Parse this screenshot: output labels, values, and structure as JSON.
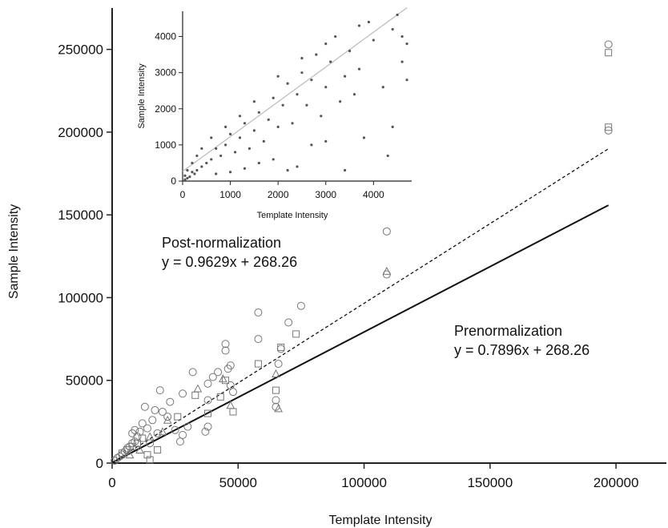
{
  "chart_data": [
    {
      "type": "scatter",
      "role": "main",
      "xlabel": "Template Intensity",
      "ylabel": "Sample Intensity",
      "xlim": [
        0,
        220000
      ],
      "ylim": [
        0,
        275000
      ],
      "x_ticks": [
        0,
        50000,
        100000,
        150000,
        200000
      ],
      "y_ticks": [
        0,
        50000,
        100000,
        150000,
        200000,
        250000
      ],
      "x_tick_labels": [
        "0",
        "50000",
        "100000",
        "150000",
        "200000"
      ],
      "y_tick_labels": [
        "0",
        "50000",
        "100000",
        "150000",
        "200000",
        "250000"
      ],
      "grid": false,
      "annotations": [
        {
          "line1": "Post-normalization",
          "line2": "y = 0.9629x + 268.26"
        },
        {
          "line1": "Prenormalization",
          "line2": "y = 0.7896x + 268.26"
        }
      ],
      "fit_lines": [
        {
          "slope": 0.9629,
          "intercept": 268.26,
          "style": "dashed"
        },
        {
          "slope": 0.7896,
          "intercept": 268.26,
          "style": "solid"
        }
      ],
      "series": [
        {
          "marker": "circle",
          "points": [
            [
              197000,
              253000
            ],
            [
              197000,
              201000
            ],
            [
              109000,
              140000
            ],
            [
              109000,
              114000
            ],
            [
              75000,
              95000
            ],
            [
              70000,
              85000
            ],
            [
              58000,
              91000
            ],
            [
              58000,
              75000
            ],
            [
              67000,
              69000
            ],
            [
              66000,
              60000
            ],
            [
              65000,
              38000
            ],
            [
              65000,
              34000
            ],
            [
              45000,
              72000
            ],
            [
              45000,
              68000
            ],
            [
              47000,
              59000
            ],
            [
              46000,
              57000
            ],
            [
              47000,
              47000
            ],
            [
              48000,
              43000
            ],
            [
              40000,
              52000
            ],
            [
              42000,
              55000
            ],
            [
              38000,
              48000
            ],
            [
              38000,
              38000
            ],
            [
              32000,
              55000
            ],
            [
              28000,
              42000
            ],
            [
              19000,
              44000
            ],
            [
              23000,
              37000
            ],
            [
              20000,
              31000
            ],
            [
              22000,
              28000
            ],
            [
              16000,
              26000
            ],
            [
              14000,
              21000
            ],
            [
              12000,
              24000
            ],
            [
              11000,
              19000
            ],
            [
              10000,
              16000
            ],
            [
              9000,
              13000
            ],
            [
              8000,
              12000
            ],
            [
              7000,
              10000
            ],
            [
              6000,
              9000
            ],
            [
              5000,
              7000
            ],
            [
              4000,
              5000
            ],
            [
              3000,
              4000
            ],
            [
              2000,
              3000
            ],
            [
              1000,
              1500
            ],
            [
              28000,
              17000
            ],
            [
              27000,
              13000
            ],
            [
              38000,
              22000
            ],
            [
              37000,
              19000
            ],
            [
              30000,
              22000
            ],
            [
              13000,
              34000
            ],
            [
              17000,
              32000
            ],
            [
              15000,
              12000
            ],
            [
              18000,
              18000
            ],
            [
              25000,
              20000
            ],
            [
              9000,
              20000
            ],
            [
              8000,
              18000
            ]
          ]
        },
        {
          "marker": "square",
          "points": [
            [
              197000,
              248000
            ],
            [
              197000,
              203000
            ],
            [
              73000,
              78000
            ],
            [
              67000,
              70000
            ],
            [
              58000,
              60000
            ],
            [
              45000,
              50000
            ],
            [
              43000,
              40000
            ],
            [
              48000,
              31000
            ],
            [
              65000,
              44000
            ],
            [
              38000,
              30000
            ],
            [
              33000,
              41000
            ],
            [
              26000,
              28000
            ],
            [
              12000,
              15000
            ],
            [
              10000,
              12000
            ],
            [
              8000,
              10000
            ],
            [
              6000,
              8000
            ],
            [
              4000,
              6000
            ],
            [
              15000,
              2000
            ],
            [
              14000,
              5000
            ],
            [
              18000,
              8000
            ]
          ]
        },
        {
          "marker": "triangle",
          "points": [
            [
              109000,
              116000
            ],
            [
              65000,
              54000
            ],
            [
              66000,
              33000
            ],
            [
              47000,
              35000
            ],
            [
              44000,
              51000
            ],
            [
              34000,
              45000
            ],
            [
              22000,
              26000
            ],
            [
              15000,
              16000
            ],
            [
              11000,
              8000
            ],
            [
              7000,
              5000
            ],
            [
              20000,
              19000
            ]
          ]
        }
      ]
    },
    {
      "type": "scatter",
      "role": "inset",
      "xlabel": "Template Intensity",
      "ylabel": "Sample Intensity",
      "xlim": [
        0,
        4800
      ],
      "ylim": [
        0,
        4700
      ],
      "x_ticks": [
        0,
        1000,
        2000,
        3000,
        4000
      ],
      "y_ticks": [
        0,
        1000,
        2000,
        3000,
        4000
      ],
      "x_tick_labels": [
        "0",
        "1000",
        "2000",
        "3000",
        "4000"
      ],
      "y_tick_labels": [
        "0",
        "1000",
        "2000",
        "3000",
        "4000"
      ],
      "grid": false,
      "fit_line": {
        "slope": 0.9629,
        "intercept": 268.26,
        "style": "solid"
      },
      "points": [
        [
          4500,
          4600
        ],
        [
          4400,
          4200
        ],
        [
          4700,
          3800
        ],
        [
          4600,
          3300
        ],
        [
          4200,
          2600
        ],
        [
          4000,
          3900
        ],
        [
          3900,
          4400
        ],
        [
          3700,
          3100
        ],
        [
          3600,
          2400
        ],
        [
          3500,
          3600
        ],
        [
          3400,
          2900
        ],
        [
          3300,
          2200
        ],
        [
          3200,
          4000
        ],
        [
          3100,
          3300
        ],
        [
          3000,
          2600
        ],
        [
          2900,
          1800
        ],
        [
          2800,
          3500
        ],
        [
          2700,
          2800
        ],
        [
          2600,
          2100
        ],
        [
          2500,
          3000
        ],
        [
          2400,
          2400
        ],
        [
          2300,
          1600
        ],
        [
          2200,
          2700
        ],
        [
          2100,
          2100
        ],
        [
          2000,
          1500
        ],
        [
          1900,
          2300
        ],
        [
          1800,
          1700
        ],
        [
          1700,
          1100
        ],
        [
          1600,
          1900
        ],
        [
          1500,
          1400
        ],
        [
          1400,
          900
        ],
        [
          1300,
          1600
        ],
        [
          1200,
          1200
        ],
        [
          1100,
          800
        ],
        [
          1000,
          1300
        ],
        [
          900,
          1000
        ],
        [
          800,
          700
        ],
        [
          700,
          900
        ],
        [
          600,
          600
        ],
        [
          500,
          500
        ],
        [
          400,
          400
        ],
        [
          300,
          300
        ],
        [
          250,
          200
        ],
        [
          200,
          250
        ],
        [
          150,
          120
        ],
        [
          100,
          80
        ],
        [
          50,
          40
        ],
        [
          2400,
          400
        ],
        [
          2200,
          300
        ],
        [
          3400,
          300
        ],
        [
          3000,
          1100
        ],
        [
          3800,
          1200
        ],
        [
          4300,
          700
        ],
        [
          4400,
          1500
        ],
        [
          2700,
          1000
        ],
        [
          1900,
          600
        ],
        [
          1600,
          500
        ],
        [
          1300,
          350
        ],
        [
          1000,
          250
        ],
        [
          700,
          200
        ],
        [
          4600,
          4000
        ],
        [
          4700,
          2800
        ],
        [
          3700,
          4300
        ],
        [
          3000,
          3800
        ],
        [
          2500,
          3400
        ],
        [
          2000,
          2900
        ],
        [
          1500,
          2200
        ],
        [
          1200,
          1800
        ],
        [
          900,
          1500
        ],
        [
          600,
          1200
        ],
        [
          400,
          900
        ],
        [
          300,
          700
        ],
        [
          200,
          500
        ],
        [
          100,
          300
        ],
        [
          50,
          150
        ]
      ]
    }
  ]
}
